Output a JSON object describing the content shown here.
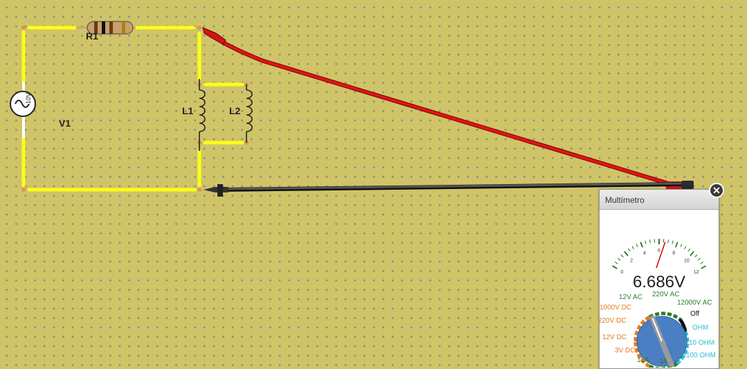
{
  "circuit": {
    "resistor": "R1",
    "source": "V1",
    "source_value": "10V",
    "inductor_1": "L1",
    "inductor_2": "L2"
  },
  "multimeter": {
    "title": "Multímetro",
    "close_symbol": "✕",
    "reading": "6.686V",
    "scale_ticks": [
      "0",
      "2",
      "4",
      "6",
      "8",
      "10",
      "12"
    ],
    "needle_value": 6.686,
    "scale_max": 12,
    "selector_position": "12V AC",
    "selector": {
      "v12_ac": "12V AC",
      "v220_ac": "220V AC",
      "v12000_ac": "12000V AC",
      "off": "Off",
      "ohm": "OHM",
      "x10_ohm": "x10 OHM",
      "x100_ohm": "x100 OHM",
      "a3": "3A",
      "a15": "15A",
      "v3_dc": "3V DC",
      "v12_dc": "12V DC",
      "v220_dc": "220V DC",
      "v1000_dc": "1000V DC"
    },
    "colors": {
      "ac": "#2a7d2a",
      "dc": "#e7781b",
      "ohm": "#2cbfcf",
      "knob": "#4a7fc4"
    }
  },
  "probes": {
    "positive_color": "#d41414",
    "negative_color": "#333333"
  }
}
